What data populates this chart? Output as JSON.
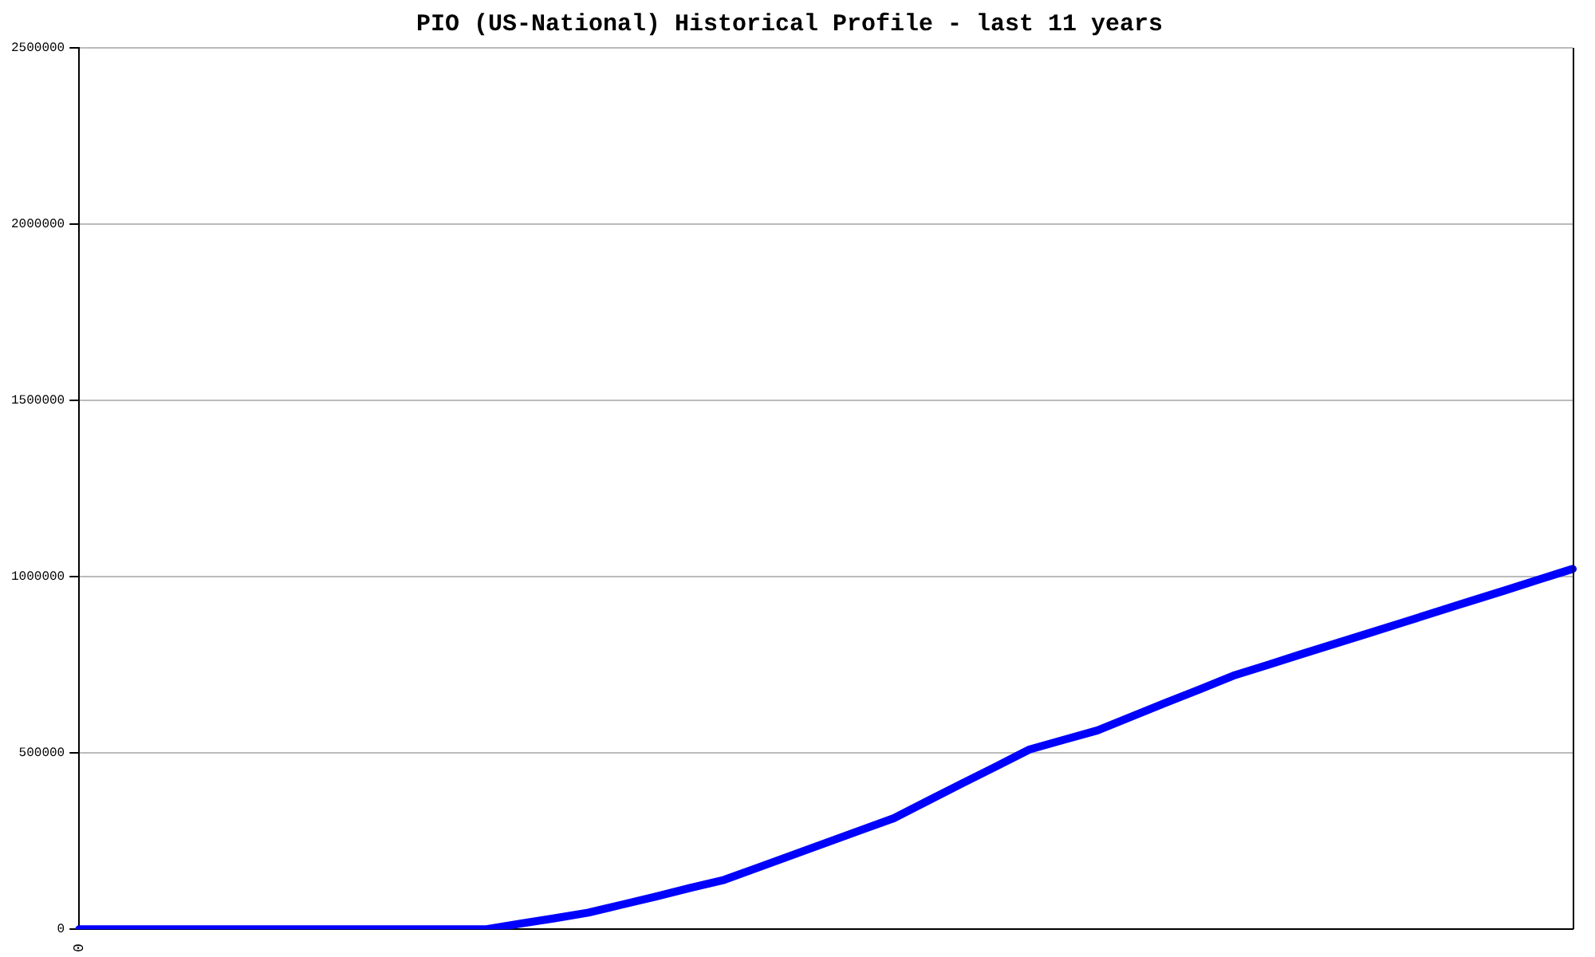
{
  "chart_data": {
    "type": "line",
    "title": "PIO (US-National) Historical Profile - last 11 years",
    "categories": [
      "0",
      null,
      null,
      null,
      null,
      null,
      null,
      null,
      null,
      null,
      null,
      null,
      null,
      null,
      null,
      null,
      null,
      null,
      null,
      null,
      null,
      null,
      null,
      null,
      null,
      null,
      null,
      null,
      null,
      null,
      null,
      null,
      null,
      null,
      null,
      null,
      null,
      null,
      null,
      null,
      null,
      null,
      null,
      null,
      null
    ],
    "series": [
      {
        "color": "#0000ff",
        "values": [
          0,
          0,
          0,
          0,
          0,
          0,
          0,
          0,
          0,
          0,
          0,
          0,
          0,
          16000,
          31000,
          47000,
          70000,
          93000,
          117000,
          140000,
          175000,
          210000,
          245000,
          280000,
          315000,
          364000,
          413000,
          461000,
          510000,
          537000,
          564000,
          603000,
          642000,
          680000,
          719000,
          749000,
          780000,
          810000,
          840000,
          870000,
          901000,
          931000,
          961000,
          992000,
          1022000
        ]
      }
    ],
    "ylim": [
      0,
      2500000
    ],
    "yticks": [
      0,
      500000,
      1000000,
      1500000,
      2000000,
      2500000
    ],
    "grid": "y",
    "legend": false,
    "marker": "none",
    "line_style": "solid"
  }
}
